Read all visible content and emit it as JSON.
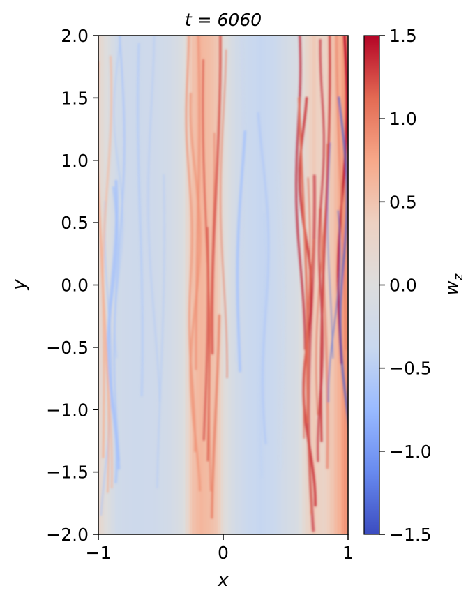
{
  "chart_data": {
    "type": "heatmap",
    "title": "t = 6060",
    "xlabel": "x",
    "ylabel": "y",
    "xlim": [
      -1,
      1
    ],
    "ylim": [
      -2.0,
      2.0
    ],
    "x_ticks": [
      -1,
      0,
      1
    ],
    "x_tick_labels": [
      "−1",
      "0",
      "1"
    ],
    "y_ticks": [
      2.0,
      1.5,
      1.0,
      0.5,
      0.0,
      -0.5,
      -1.0,
      -1.5,
      -2.0
    ],
    "y_tick_labels": [
      "2.0",
      "1.5",
      "1.0",
      "0.5",
      "0.0",
      "−0.5",
      "−1.0",
      "−1.5",
      "−2.0"
    ],
    "colorbar": {
      "label": "w_z",
      "colormap": "coolwarm",
      "vmin": -1.5,
      "vmax": 1.5,
      "ticks": [
        1.5,
        1.0,
        0.5,
        0.0,
        -0.5,
        -1.0,
        -1.5
      ],
      "tick_labels": [
        "1.5",
        "1.0",
        "0.5",
        "0.0",
        "−0.5",
        "−1.0",
        "−1.5"
      ],
      "colors": [
        "#3b4cc0",
        "#688aef",
        "#99baff",
        "#c9d8ef",
        "#dddddd",
        "#edd1c2",
        "#f7a889",
        "#e36a53",
        "#b40426"
      ]
    },
    "field_profile_x": [
      -1.0,
      -0.95,
      -0.85,
      -0.7,
      -0.55,
      -0.42,
      -0.32,
      -0.25,
      -0.18,
      -0.1,
      -0.04,
      0.0,
      0.04,
      0.1,
      0.2,
      0.3,
      0.4,
      0.5,
      0.6,
      0.66,
      0.72,
      0.8,
      0.88,
      0.94,
      0.98,
      1.0
    ],
    "field_profile_wz": [
      0.25,
      0.05,
      -0.25,
      -0.3,
      -0.28,
      -0.2,
      -0.05,
      0.5,
      0.62,
      0.55,
      0.45,
      0.1,
      -0.05,
      -0.2,
      -0.35,
      -0.4,
      -0.35,
      -0.2,
      -0.1,
      0.2,
      0.45,
      0.3,
      0.5,
      0.7,
      0.9,
      0.6
    ]
  }
}
